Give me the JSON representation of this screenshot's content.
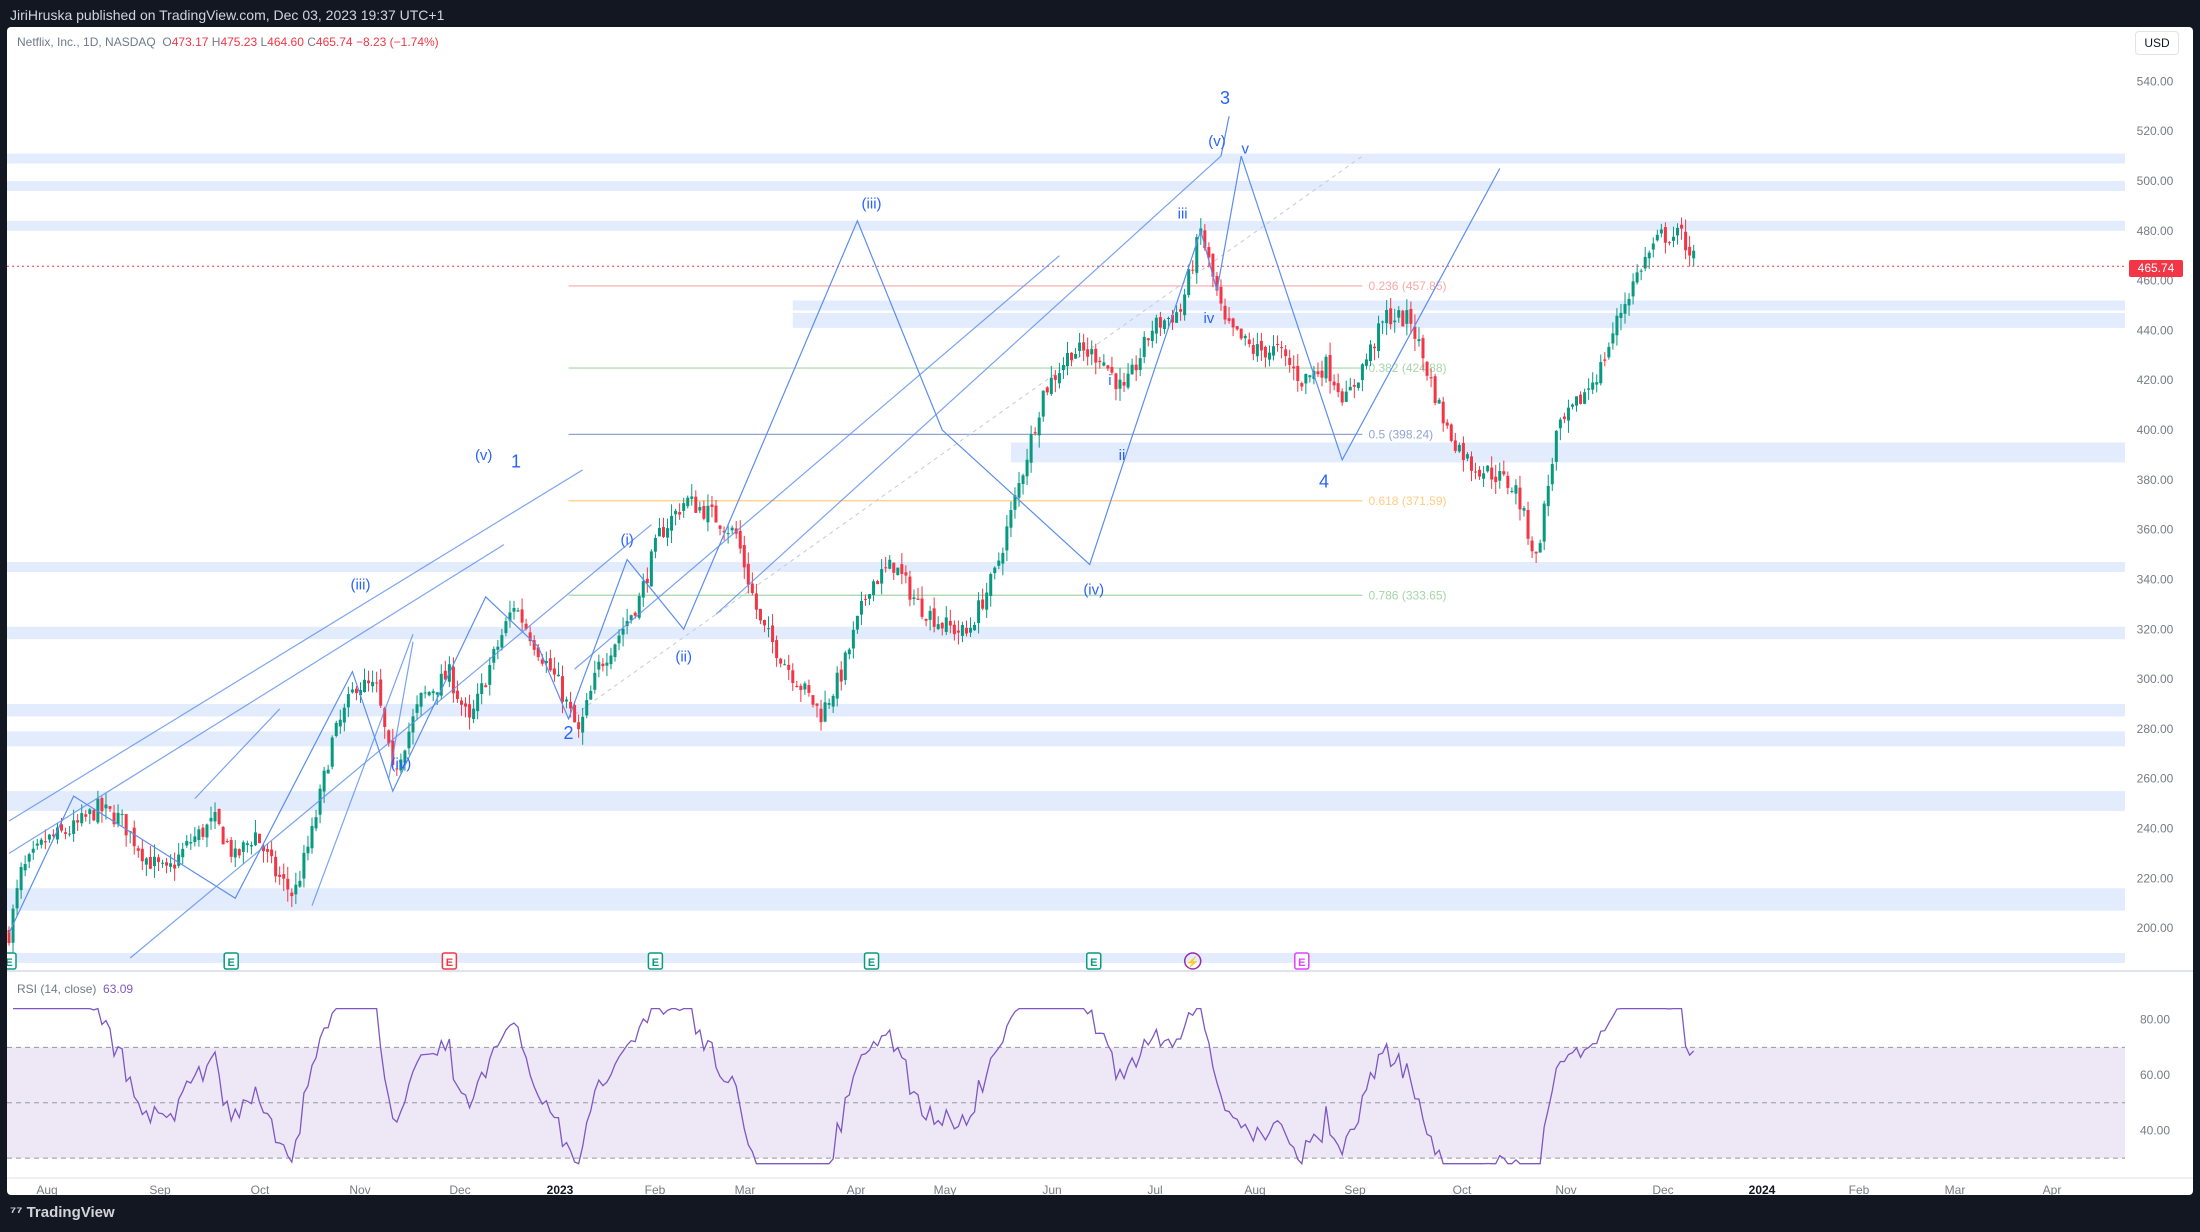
{
  "header": {
    "publisher": "JiriHruska published on TradingView.com, Dec 03, 2023 19:37 UTC+1"
  },
  "footer": {
    "brand": "TradingView"
  },
  "legend": {
    "symbol": "Netflix, Inc., 1D, NASDAQ",
    "o_label": "O",
    "o": "473.17",
    "h_label": "H",
    "h": "475.23",
    "l_label": "L",
    "l": "464.60",
    "c_label": "C",
    "c": "465.74",
    "change": "−8.23 (−1.74%)"
  },
  "currency": "USD",
  "last_price": "465.74",
  "rsi_legend": {
    "label": "RSI (14, close)",
    "value": "63.09"
  },
  "colors": {
    "up": "#089981",
    "down": "#f23645",
    "wave": "#2962ff",
    "channel": "#5b8def",
    "zone": "#e3ecfd",
    "rsi": "#7e57c2",
    "rsi_band": "#ede7f6"
  },
  "chart_data": {
    "type": "candlestick",
    "price_axis": {
      "ylim": [
        188,
        555
      ],
      "ticks": [
        200,
        220,
        240,
        260,
        280,
        300,
        320,
        340,
        360,
        380,
        400,
        420,
        440,
        460,
        480,
        500,
        520,
        540
      ]
    },
    "time_axis": {
      "labels": [
        "Aug",
        "Sep",
        "Oct",
        "Nov",
        "Dec",
        "2023",
        "Feb",
        "Mar",
        "Apr",
        "May",
        "Jun",
        "Jul",
        "Aug",
        "Sep",
        "Oct",
        "Nov",
        "Dec",
        "2024",
        "Feb",
        "Mar",
        "Apr"
      ]
    },
    "rsi_axis": {
      "ylim": [
        25,
        90
      ],
      "ticks": [
        40,
        60,
        80
      ],
      "bands": [
        30,
        50,
        70
      ]
    },
    "anchor_closes": [
      [
        0,
        198
      ],
      [
        6,
        222
      ],
      [
        18,
        235
      ],
      [
        32,
        240
      ],
      [
        44,
        248
      ],
      [
        55,
        244
      ],
      [
        68,
        228
      ],
      [
        78,
        222
      ],
      [
        90,
        235
      ],
      [
        102,
        243
      ],
      [
        112,
        228
      ],
      [
        122,
        238
      ],
      [
        132,
        222
      ],
      [
        141,
        213
      ],
      [
        150,
        238
      ],
      [
        160,
        275
      ],
      [
        172,
        298
      ],
      [
        182,
        296
      ],
      [
        190,
        262
      ],
      [
        204,
        292
      ],
      [
        218,
        302
      ],
      [
        228,
        282
      ],
      [
        238,
        305
      ],
      [
        250,
        330
      ],
      [
        262,
        312
      ],
      [
        272,
        298
      ],
      [
        282,
        278
      ],
      [
        292,
        305
      ],
      [
        302,
        318
      ],
      [
        312,
        332
      ],
      [
        322,
        358
      ],
      [
        335,
        372
      ],
      [
        348,
        366
      ],
      [
        360,
        358
      ],
      [
        372,
        322
      ],
      [
        388,
        302
      ],
      [
        402,
        286
      ],
      [
        412,
        302
      ],
      [
        426,
        338
      ],
      [
        438,
        346
      ],
      [
        450,
        330
      ],
      [
        462,
        322
      ],
      [
        474,
        318
      ],
      [
        488,
        342
      ],
      [
        500,
        378
      ],
      [
        512,
        415
      ],
      [
        526,
        432
      ],
      [
        540,
        430
      ],
      [
        552,
        415
      ],
      [
        566,
        441
      ],
      [
        580,
        448
      ],
      [
        590,
        480
      ],
      [
        602,
        442
      ],
      [
        616,
        432
      ],
      [
        628,
        432
      ],
      [
        640,
        420
      ],
      [
        652,
        426
      ],
      [
        662,
        412
      ],
      [
        674,
        432
      ],
      [
        682,
        446
      ],
      [
        694,
        444
      ],
      [
        702,
        424
      ],
      [
        712,
        400
      ],
      [
        724,
        386
      ],
      [
        736,
        382
      ],
      [
        746,
        376
      ],
      [
        756,
        348
      ],
      [
        766,
        398
      ],
      [
        776,
        410
      ],
      [
        788,
        425
      ],
      [
        798,
        448
      ],
      [
        808,
        466
      ],
      [
        818,
        478
      ],
      [
        828,
        478
      ],
      [
        835,
        468
      ]
    ],
    "annotations": {
      "major_waves": [
        "1",
        "2",
        "3",
        "4"
      ],
      "minor_waves": [
        "(i)",
        "(ii)",
        "(iii)",
        "(iv)",
        "(v)"
      ],
      "subminor_waves": [
        "i",
        "ii",
        "iii",
        "iv",
        "v"
      ],
      "fib_levels": [
        {
          "label": "0.236 (457.85)",
          "value": 457.85,
          "color": "#f7a8a8"
        },
        {
          "label": "0.382 (424.88)",
          "value": 424.88,
          "color": "#a5d6a7"
        },
        {
          "label": "0.5 (398.24)",
          "value": 398.24,
          "color": "#90a4d4"
        },
        {
          "label": "0.618 (371.59)",
          "value": 371.59,
          "color": "#ffcc80"
        },
        {
          "label": "0.786 (333.65)",
          "value": 333.65,
          "color": "#a5d6a7"
        }
      ],
      "event_markers": [
        "E",
        "E",
        "E",
        "E",
        "E",
        "E",
        "⚡",
        "E"
      ]
    }
  }
}
